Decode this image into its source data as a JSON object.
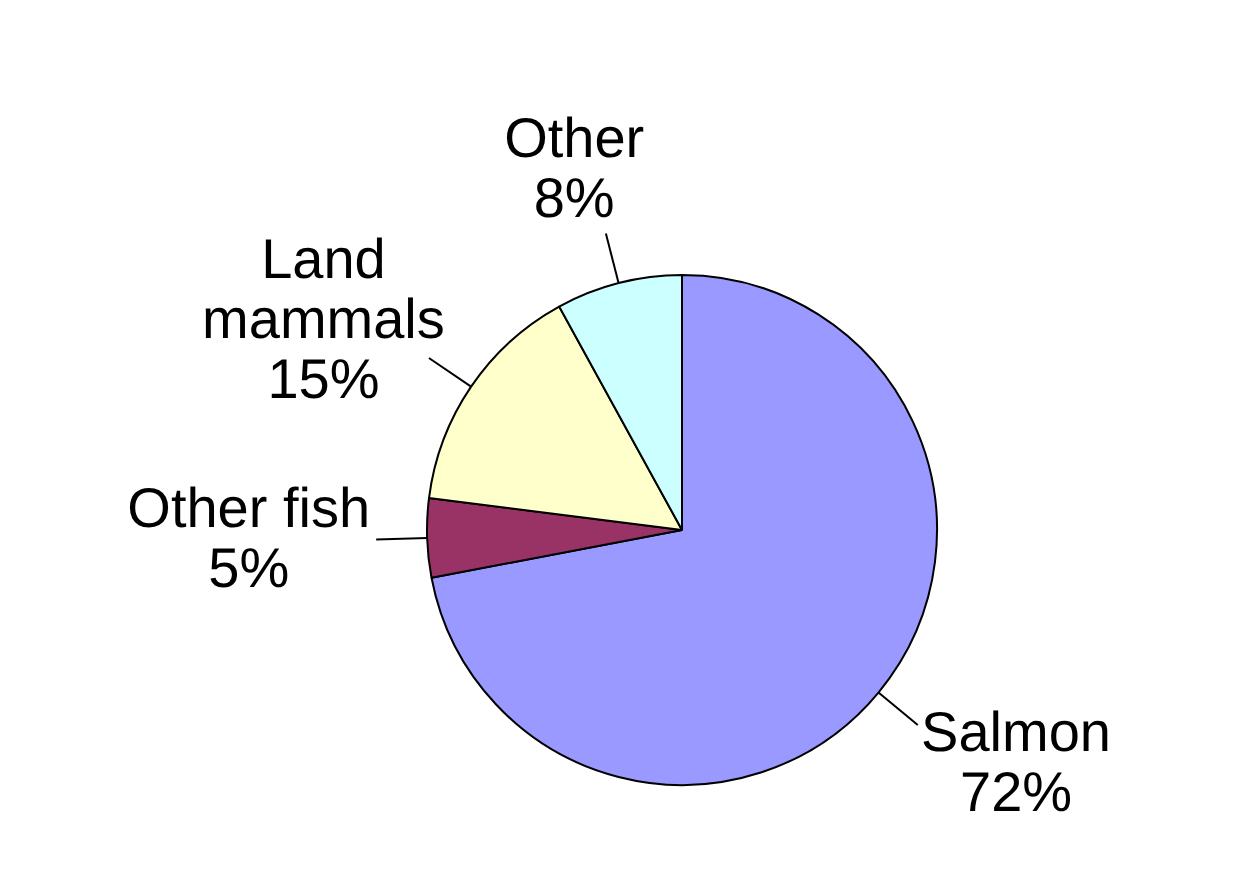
{
  "chart_data": {
    "type": "pie",
    "categories": [
      "Salmon",
      "Other fish",
      "Land mammals",
      "Other"
    ],
    "values": [
      72,
      5,
      15,
      8
    ],
    "colors": [
      "#9999ff",
      "#993366",
      "#ffffcc",
      "#ccffff"
    ],
    "value_labels": [
      "72%",
      "5%",
      "15%",
      "8%"
    ]
  }
}
